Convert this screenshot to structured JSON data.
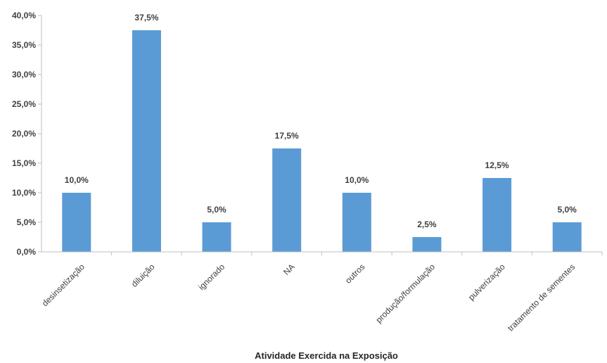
{
  "chart_data": {
    "type": "bar",
    "title": "",
    "xlabel": "Atividade  Exercida na Exposição",
    "ylabel": "",
    "categories": [
      "desinsetização",
      "diluição",
      "ignorado",
      "NA",
      "outros",
      "produção/formulação",
      "pulverização",
      "tratamento de sementes"
    ],
    "values": [
      10.0,
      37.5,
      5.0,
      17.5,
      10.0,
      2.5,
      12.5,
      5.0
    ],
    "data_labels": [
      "10,0%",
      "37,5%",
      "5,0%",
      "17,5%",
      "10,0%",
      "2,5%",
      "12,5%",
      "5,0%"
    ],
    "ylim": [
      0,
      40
    ],
    "yticks": [
      0,
      5,
      10,
      15,
      20,
      25,
      30,
      35,
      40
    ],
    "ytick_labels": [
      "0,0%",
      "5,0%",
      "10,0%",
      "15,0%",
      "20,0%",
      "25,0%",
      "30,0%",
      "35,0%",
      "40,0%"
    ],
    "grid": false,
    "legend": "none",
    "bar_color": "#5B9BD5",
    "axis_color": "#BFBFBF"
  }
}
